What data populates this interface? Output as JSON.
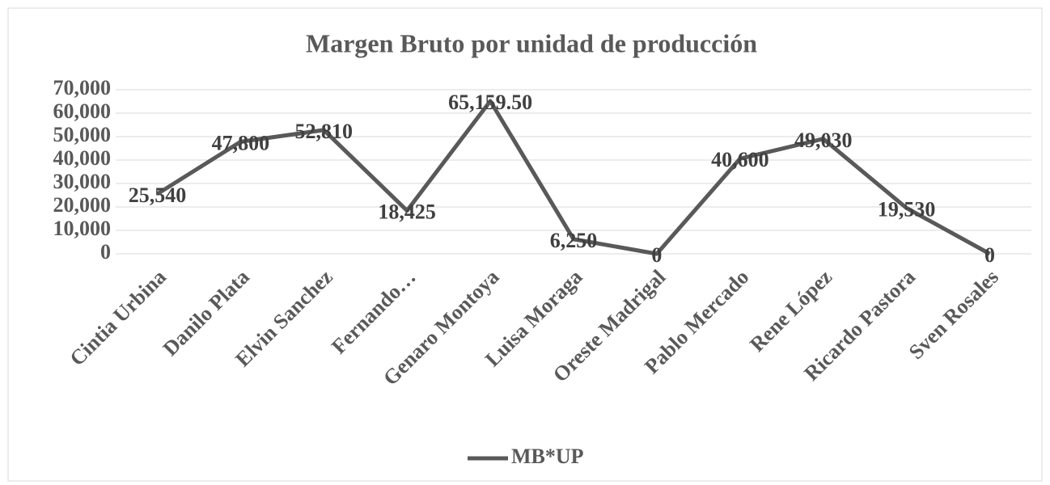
{
  "chart_data": {
    "type": "line",
    "title": "Margen Bruto por  unidad de producción",
    "categories": [
      "Cintia Urbina",
      "Danilo Plata",
      "Elvin Sanchez",
      "Fernando…",
      "Genaro Montoya",
      "Luisa Moraga",
      "Oreste Madrigal",
      "Pablo Mercado",
      "Rene López",
      "Ricardo Pastora",
      "Sven Rosales"
    ],
    "series": [
      {
        "name": "MB*UP",
        "color": "#595959",
        "values": [
          25540,
          47800,
          52810,
          18425,
          65159.5,
          6250,
          0,
          40600,
          49030,
          19530,
          0
        ],
        "value_labels": [
          "25,540",
          "47,800",
          "52,810",
          "18,425",
          "65,159.50",
          "6,250",
          "0",
          "40,600",
          "49,030",
          "19,530",
          "0"
        ]
      }
    ],
    "ylim": [
      0,
      70000
    ],
    "yticks": [
      0,
      {
        "value": 10000,
        "label": "10,000"
      },
      {
        "value": 20000,
        "label": "20,000"
      },
      {
        "value": 30000,
        "label": "30,000"
      },
      {
        "value": 40000,
        "label": "40,000"
      },
      {
        "value": 50000,
        "label": "50,000"
      },
      {
        "value": 60000,
        "label": "60,000"
      },
      {
        "value": 70000,
        "label": "70,000"
      }
    ],
    "grid": true,
    "legend": "bottom"
  }
}
